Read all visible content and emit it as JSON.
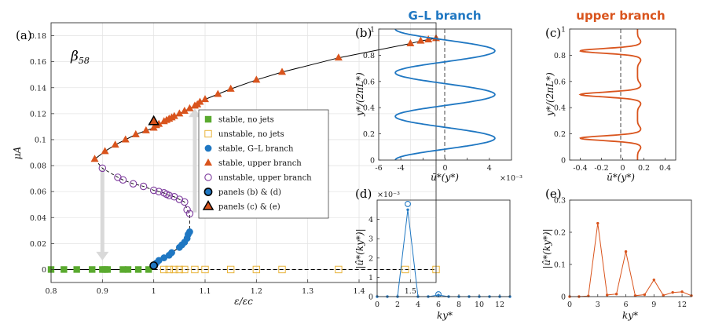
{
  "colors": {
    "green": "#5aaa2f",
    "yellow": "#e9b43a",
    "blue": "#1f77c2",
    "orange": "#d9541d",
    "purple": "#7e3c9e",
    "arrow": "#d9d9d9"
  },
  "chart_data": [
    {
      "id": "a",
      "panel_label": "(a)",
      "type": "scatter",
      "annotation": "β58",
      "annotation_sub": "58",
      "annotation_base": "β",
      "xlabel": "ε/εc",
      "ylabel": "μA",
      "xlim": [
        0.8,
        1.55
      ],
      "ylim": [
        -0.01,
        0.19
      ],
      "xticks": [
        0.8,
        0.9,
        1.0,
        1.1,
        1.2,
        1.3,
        1.4,
        1.5
      ],
      "yticks": [
        0,
        0.02,
        0.04,
        0.06,
        0.08,
        0.1,
        0.12,
        0.14,
        0.16,
        0.18
      ],
      "xtick_labels": [
        "0.8",
        "0.9",
        "1",
        "1.1",
        "1.2",
        "1.3",
        "1.4",
        "1.5"
      ],
      "ytick_labels": [
        "0",
        "0.02",
        "0.04",
        "0.06",
        "0.08",
        "0.1",
        "0.12",
        "0.14",
        "0.16",
        "0.18"
      ],
      "grid": true,
      "legend_position": "right",
      "legend": [
        "stable, no jets",
        "unstable, no jets",
        "stable, G–L branch",
        "stable, upper branch",
        "unstable, upper branch",
        "panels (b) & (d)",
        "panels (c) & (e)"
      ],
      "series": [
        {
          "name": "stable, no jets",
          "x": [
            0.8,
            0.825,
            0.85,
            0.88,
            0.9,
            0.905,
            0.91,
            0.94,
            0.95,
            0.97,
            0.99
          ],
          "y": [
            0,
            0,
            0,
            0,
            0,
            0,
            0,
            0,
            0,
            0,
            0
          ]
        },
        {
          "name": "unstable, no jets",
          "x": [
            1.02,
            1.03,
            1.04,
            1.05,
            1.06,
            1.08,
            1.1,
            1.15,
            1.2,
            1.25,
            1.36,
            1.49,
            1.55
          ],
          "y": [
            0,
            0,
            0,
            0,
            0,
            0,
            0,
            0,
            0,
            0,
            0,
            0,
            0
          ]
        },
        {
          "name": "stable, G–L branch",
          "x": [
            1.0,
            1.005,
            1.01,
            1.02,
            1.03,
            1.035,
            1.05,
            1.055,
            1.06,
            1.065,
            1.067,
            1.07
          ],
          "y": [
            0.003,
            0.005,
            0.007,
            0.009,
            0.011,
            0.013,
            0.017,
            0.019,
            0.021,
            0.024,
            0.027,
            0.029
          ]
        },
        {
          "name": "stable, upper branch",
          "x": [
            0.885,
            0.905,
            0.925,
            0.945,
            0.965,
            0.985,
            1.0,
            1.005,
            1.01,
            1.02,
            1.025,
            1.03,
            1.035,
            1.04,
            1.05,
            1.06,
            1.07,
            1.08,
            1.085,
            1.09,
            1.1,
            1.125,
            1.15,
            1.2,
            1.25,
            1.36,
            1.5,
            1.52,
            1.535,
            1.55
          ],
          "y": [
            0.085,
            0.091,
            0.096,
            0.1,
            0.104,
            0.107,
            0.109,
            0.111,
            0.112,
            0.114,
            0.115,
            0.116,
            0.117,
            0.118,
            0.12,
            0.122,
            0.124,
            0.126,
            0.127,
            0.129,
            0.131,
            0.135,
            0.139,
            0.146,
            0.152,
            0.163,
            0.174,
            0.176,
            0.177,
            0.178
          ]
        },
        {
          "name": "unstable, upper branch",
          "x": [
            0.9,
            0.93,
            0.94,
            0.96,
            0.98,
            1.0,
            1.01,
            1.02,
            1.025,
            1.03,
            1.04,
            1.05,
            1.06,
            1.065,
            1.07
          ],
          "y": [
            0.078,
            0.071,
            0.069,
            0.066,
            0.064,
            0.061,
            0.06,
            0.059,
            0.058,
            0.057,
            0.056,
            0.054,
            0.052,
            0.046,
            0.043
          ]
        },
        {
          "name": "panels (b) & (d)",
          "x": [
            1.0
          ],
          "y": [
            0.003
          ]
        },
        {
          "name": "panels (c) & (e)",
          "x": [
            1.0
          ],
          "y": [
            0.114
          ]
        }
      ],
      "arrows": [
        {
          "from": [
            0.9,
            0.077
          ],
          "to": [
            0.9,
            0.007
          ]
        },
        {
          "from": [
            1.08,
            0.044
          ],
          "to": [
            1.08,
            0.124
          ]
        }
      ]
    },
    {
      "id": "b",
      "panel_label": "(b)",
      "type": "line",
      "title": "G–L branch",
      "xlabel": "ū*(y*)",
      "ylabel": "y*/(2πL*)",
      "x_multiplier": "×10⁻³",
      "xlim": [
        -6,
        6
      ],
      "ylim": [
        0,
        1
      ],
      "xticks": [
        -6,
        -4,
        -2,
        0,
        2,
        4
      ],
      "yticks": [
        0,
        0.2,
        0.4,
        0.6,
        0.8,
        1
      ],
      "xtick_labels": [
        "-6",
        "-4",
        "",
        "0",
        "",
        "4"
      ],
      "ytick_labels": [
        "0",
        "0.2",
        "0.4",
        "0.6",
        "0.8",
        "1"
      ],
      "series": [
        {
          "name": "profile",
          "function": "-4.5*cos(6*pi*y)"
        }
      ]
    },
    {
      "id": "c",
      "panel_label": "(c)",
      "type": "line",
      "title": "upper branch",
      "xlabel": "ū*(y*)",
      "ylabel": "y*/(2πL*)",
      "xlim": [
        -0.5,
        0.5
      ],
      "ylim": [
        0,
        1
      ],
      "xticks": [
        -0.4,
        -0.2,
        0,
        0.2,
        0.4
      ],
      "yticks": [
        0,
        0.2,
        0.4,
        0.6,
        0.8,
        1
      ],
      "xtick_labels": [
        "-0.4",
        "-0.2",
        "0",
        "0.2",
        "0.4"
      ],
      "ytick_labels": [
        "0",
        "0.2",
        "0.4",
        "0.6",
        "0.8",
        "1"
      ],
      "series": [
        {
          "name": "profile",
          "function": "0.14 - 0.54*exp(-((d/0.025)^2)) over jets at y=1/6,1/2,5/6"
        }
      ]
    },
    {
      "id": "d",
      "panel_label": "(d)",
      "type": "line",
      "xlabel": "ky*",
      "ylabel": "|û*(ky*)|",
      "y_multiplier": "×10⁻³",
      "xlim": [
        0,
        13
      ],
      "ylim": [
        0,
        5
      ],
      "xticks": [
        0,
        2,
        4,
        6,
        8,
        10,
        12
      ],
      "yticks": [
        0,
        1,
        2,
        3,
        4,
        5
      ],
      "xtick_labels": [
        "0",
        "2",
        "4",
        "6",
        "8",
        "10",
        "12"
      ],
      "ytick_labels": [
        "0",
        "1",
        "2",
        "3",
        "4",
        ""
      ],
      "x": [
        0,
        1,
        2,
        3,
        4,
        5,
        6,
        7,
        8,
        9,
        10,
        11,
        12,
        13
      ],
      "values": [
        0,
        0,
        0,
        4.5,
        0,
        0,
        0.08,
        0,
        0,
        0,
        0,
        0,
        0,
        0
      ],
      "circled_points": [
        {
          "x": 3,
          "y": 4.8
        },
        {
          "x": 6,
          "y": 0.12
        }
      ]
    },
    {
      "id": "e",
      "panel_label": "(e)",
      "type": "line",
      "xlabel": "ky*",
      "ylabel": "|û*(ky*)|",
      "xlim": [
        0,
        13
      ],
      "ylim": [
        0,
        0.3
      ],
      "xticks": [
        0,
        3,
        6,
        9,
        12
      ],
      "yticks": [
        0,
        0.1,
        0.2,
        0.3
      ],
      "xtick_labels": [
        "0",
        "3",
        "6",
        "9",
        "12"
      ],
      "ytick_labels": [
        "0",
        "0.1",
        "0.2",
        "0.3"
      ],
      "x": [
        0,
        1,
        2,
        3,
        4,
        5,
        6,
        7,
        8,
        9,
        10,
        11,
        12,
        13
      ],
      "values": [
        0,
        0,
        0.002,
        0.228,
        0.005,
        0.008,
        0.14,
        0.003,
        0.006,
        0.052,
        0.004,
        0.013,
        0.015,
        0.003
      ]
    }
  ]
}
